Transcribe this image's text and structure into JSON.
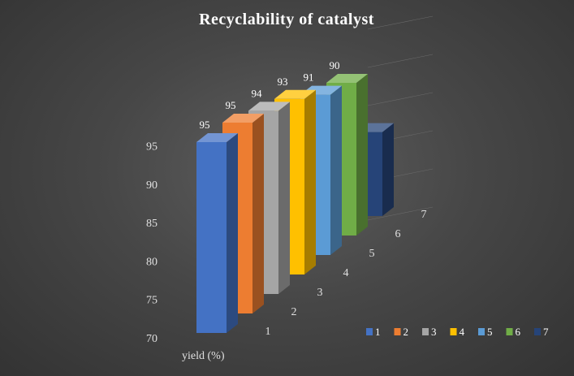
{
  "chart_data": {
    "type": "bar",
    "title": "Recyclability of catalyst",
    "xlabel": "",
    "ylabel": "",
    "axis_title": "yield (%)",
    "categories": [
      "yield (%)"
    ],
    "series": [
      {
        "name": "1",
        "values": [
          95
        ],
        "color": "#4472C4"
      },
      {
        "name": "2",
        "values": [
          95
        ],
        "color": "#ED7D31"
      },
      {
        "name": "3",
        "values": [
          94
        ],
        "color": "#A5A5A5"
      },
      {
        "name": "4",
        "values": [
          93
        ],
        "color": "#FFC000"
      },
      {
        "name": "5",
        "values": [
          91
        ],
        "color": "#5B9BD5"
      },
      {
        "name": "6",
        "values": [
          90
        ],
        "color": "#70AD47"
      },
      {
        "name": "7",
        "values": [
          81
        ],
        "color": "#264478"
      }
    ],
    "depth_labels": [
      "1",
      "2",
      "3",
      "4",
      "5",
      "6",
      "7"
    ],
    "y_ticks": [
      70,
      75,
      80,
      85,
      90,
      95
    ],
    "ylim": [
      70,
      95
    ],
    "grid": true,
    "legend_position": "bottom-right",
    "style": "3d-column"
  }
}
